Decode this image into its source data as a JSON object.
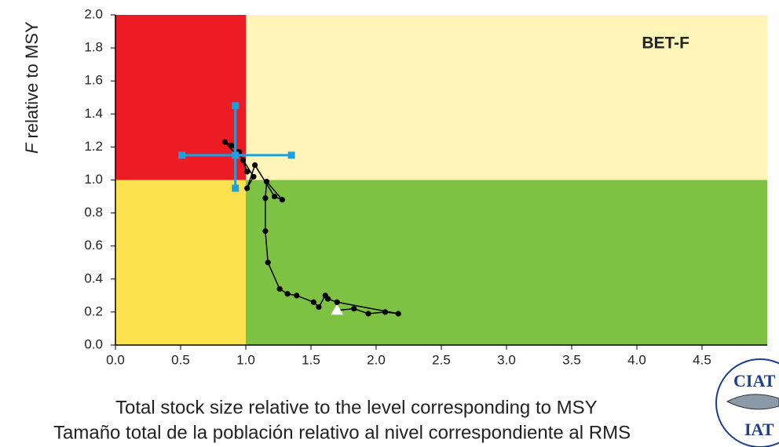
{
  "chart_data": {
    "type": "kobe",
    "annotation": "BET-F",
    "xlabel": [
      "Total stock size relative to the level corresponding to MSY",
      "Tamaño total de la población relativo al nivel correspondiente al RMS"
    ],
    "ylabel": {
      "italic": "F",
      "text": "relative to MSY"
    },
    "xlim": [
      0,
      5
    ],
    "ylim": [
      0,
      2
    ],
    "xticks": [
      {
        "value": 0,
        "label": "0.0"
      },
      0.5,
      {
        "value": 1,
        "label": "1.0"
      },
      1.5,
      {
        "value": 2,
        "label": "2.0"
      },
      2.5,
      {
        "value": 3,
        "label": "3.0"
      },
      3.5,
      {
        "value": 4,
        "label": "4.0"
      },
      4.5
    ],
    "yticks": [
      {
        "value": 0,
        "label": "0.0"
      },
      0.2,
      0.4,
      0.6,
      0.8,
      {
        "value": 1,
        "label": "1.0"
      },
      1.2,
      1.4,
      1.6,
      1.8,
      {
        "value": 2,
        "label": "2.0"
      }
    ],
    "reference_x": 1,
    "reference_y": 1,
    "zone_colors": {
      "overfished_overfishing": "#ed1c24",
      "overfishing": "#fff5b8",
      "overfished": "#fde24f",
      "healthy": "#7dc242"
    },
    "series": [
      {
        "color": "#000000",
        "x": [
          1.7,
          1.83,
          1.94,
          2.07,
          2.17,
          1.7,
          1.63,
          1.61,
          1.56,
          1.52,
          1.39,
          1.32,
          1.26,
          1.17,
          1.15,
          1.15,
          1.16,
          1.28,
          1.22,
          1.07,
          1.01,
          1.06,
          0.98,
          1.01,
          0.95,
          0.89,
          0.84,
          0.93
        ],
        "y": [
          0.21,
          0.22,
          0.19,
          0.2,
          0.19,
          0.26,
          0.28,
          0.3,
          0.23,
          0.26,
          0.3,
          0.31,
          0.34,
          0.5,
          0.69,
          0.89,
          0.99,
          0.88,
          0.9,
          1.09,
          0.95,
          1.02,
          1.12,
          1.05,
          1.17,
          1.21,
          1.23,
          1.15
        ]
      }
    ],
    "current": {
      "color": "#1ba1e2",
      "x": 0.92,
      "y": 1.15,
      "x_ci": [
        0.51,
        1.35
      ],
      "y_ci": [
        0.95,
        1.45
      ]
    }
  },
  "logo": {
    "top": "CIAT",
    "bottom": "IAT"
  }
}
